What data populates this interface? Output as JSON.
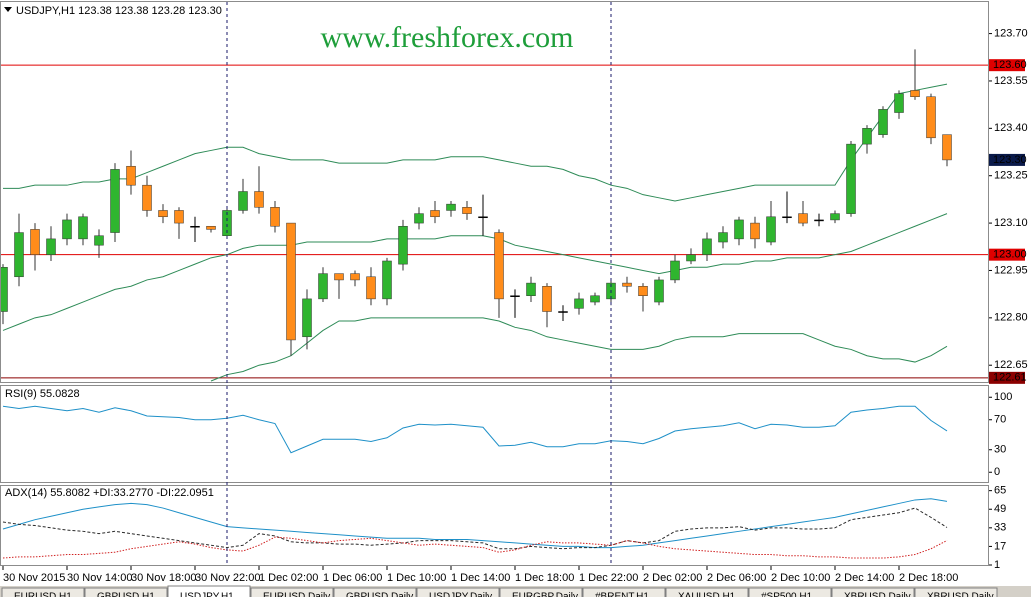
{
  "chart_data": {
    "type": "candlestick",
    "header": "USDJPY,H1  123.38 123.38 123.28 123.30",
    "watermark": "www.freshforex.com",
    "categories": [
      "30 Nov 2015",
      null,
      null,
      null,
      "30 Nov 14:00",
      null,
      null,
      null,
      "30 Nov 18:00",
      null,
      null,
      null,
      "30 Nov 22:00",
      null,
      null,
      null,
      "1 Dec 02:00",
      null,
      null,
      null,
      "1 Dec 06:00",
      null,
      null,
      null,
      "1 Dec 10:00",
      null,
      null,
      null,
      "1 Dec 14:00",
      null,
      null,
      null,
      "1 Dec 18:00",
      null,
      null,
      null,
      "1 Dec 22:00",
      null,
      null,
      null,
      "2 Dec 02:00",
      null,
      null,
      null,
      "2 Dec 06:00",
      null,
      null,
      null,
      "2 Dec 10:00",
      null,
      null,
      null,
      "2 Dec 14:00",
      null,
      null,
      null,
      "2 Dec 18:00",
      null,
      null,
      null
    ],
    "open": [
      122.82,
      122.93,
      123.08,
      123.0,
      123.05,
      123.05,
      123.03,
      123.07,
      123.28,
      123.22,
      123.14,
      123.14,
      123.09,
      123.09,
      123.06,
      123.14,
      123.2,
      123.15,
      123.1,
      122.74,
      122.86,
      122.94,
      122.94,
      122.93,
      122.86,
      122.97,
      123.1,
      123.14,
      123.14,
      123.15,
      123.12,
      123.07,
      122.87,
      122.87,
      122.9,
      122.82,
      122.83,
      122.85,
      122.86,
      122.91,
      122.9,
      122.85,
      122.92,
      122.98,
      123.0,
      123.04,
      123.05,
      123.1,
      123.04,
      123.12,
      123.13,
      123.11,
      123.11,
      123.13,
      123.35,
      123.38,
      123.45,
      123.52,
      123.5,
      123.38
    ],
    "high": [
      122.97,
      123.13,
      123.1,
      123.09,
      123.13,
      123.13,
      123.08,
      123.29,
      123.33,
      123.25,
      123.16,
      123.15,
      123.12,
      123.09,
      123.15,
      123.24,
      123.28,
      123.17,
      123.1,
      122.89,
      122.96,
      122.94,
      122.95,
      122.96,
      122.99,
      123.11,
      123.15,
      123.17,
      123.17,
      123.17,
      123.19,
      123.08,
      122.89,
      122.93,
      122.91,
      122.84,
      122.88,
      122.88,
      122.92,
      122.93,
      122.91,
      122.93,
      123.0,
      123.02,
      123.07,
      123.09,
      123.12,
      123.12,
      123.17,
      123.2,
      123.17,
      123.13,
      123.14,
      123.36,
      123.41,
      123.47,
      123.52,
      123.65,
      123.51,
      123.38
    ],
    "low": [
      122.78,
      122.9,
      122.95,
      122.98,
      123.03,
      123.03,
      122.99,
      123.04,
      123.19,
      123.12,
      123.1,
      123.05,
      123.04,
      123.07,
      123.05,
      123.13,
      123.13,
      123.07,
      122.68,
      122.7,
      122.85,
      122.86,
      122.9,
      122.84,
      122.84,
      122.95,
      123.08,
      123.1,
      123.12,
      123.11,
      123.06,
      122.8,
      122.8,
      122.85,
      122.77,
      122.79,
      122.81,
      122.84,
      122.84,
      122.88,
      122.82,
      122.84,
      122.91,
      122.97,
      122.98,
      123.02,
      123.03,
      123.02,
      123.03,
      123.1,
      123.09,
      123.09,
      123.1,
      123.12,
      123.32,
      123.37,
      123.43,
      123.49,
      123.35,
      123.28
    ],
    "close": [
      122.96,
      123.07,
      123.0,
      123.05,
      123.11,
      123.12,
      123.06,
      123.27,
      123.22,
      123.14,
      123.12,
      123.1,
      123.09,
      123.08,
      123.14,
      123.2,
      123.15,
      123.09,
      122.73,
      122.86,
      122.94,
      122.92,
      122.92,
      122.86,
      122.98,
      123.09,
      123.13,
      123.12,
      123.16,
      123.13,
      123.12,
      122.86,
      122.87,
      122.91,
      122.82,
      122.82,
      122.86,
      122.87,
      122.91,
      122.9,
      122.87,
      122.92,
      122.98,
      123.0,
      123.05,
      123.07,
      123.11,
      123.05,
      123.12,
      123.12,
      123.1,
      123.11,
      123.13,
      123.35,
      123.4,
      123.46,
      123.51,
      123.5,
      123.37,
      123.3
    ],
    "up_color": "#2fb52f",
    "down_color": "#ff8c1a",
    "doji_color": "#000000",
    "ylim": [
      122.6,
      123.8
    ],
    "yticks": [
      {
        "value": 123.7,
        "label": "123.70"
      },
      {
        "value": 123.55,
        "label": "123.55"
      },
      {
        "value": 123.4,
        "label": "123.40"
      },
      {
        "value": 123.25,
        "label": "123.25"
      },
      {
        "value": 123.1,
        "label": "123.10"
      },
      {
        "value": 122.95,
        "label": "122.95"
      },
      {
        "value": 122.8,
        "label": "122.80"
      },
      {
        "value": 122.65,
        "label": "122.65"
      }
    ],
    "hlines": [
      {
        "value": 123.6,
        "label": "123.60",
        "color": "#e00000"
      },
      {
        "value": 123.0,
        "label": "123.00",
        "color": "#e00000"
      },
      {
        "value": 122.61,
        "label": "122.61",
        "color": "#8b0000"
      }
    ],
    "price_label": {
      "value": 123.3,
      "label": "123.30",
      "color": "#0a1a4a"
    },
    "bands": {
      "color": "#2e8b57",
      "upper": [
        123.21,
        123.21,
        123.22,
        123.22,
        123.22,
        123.23,
        123.23,
        123.24,
        123.24,
        123.26,
        123.28,
        123.3,
        123.32,
        123.33,
        123.34,
        123.34,
        123.32,
        123.31,
        123.3,
        123.3,
        123.3,
        123.29,
        123.29,
        123.29,
        123.29,
        123.3,
        123.3,
        123.3,
        123.31,
        123.31,
        123.31,
        123.3,
        123.29,
        123.28,
        123.28,
        123.27,
        123.25,
        123.24,
        123.22,
        123.21,
        123.19,
        123.18,
        123.17,
        123.18,
        123.19,
        123.2,
        123.21,
        123.22,
        123.22,
        123.22,
        123.22,
        123.22,
        123.22,
        123.3,
        123.37,
        123.44,
        123.51,
        123.52,
        123.53,
        123.54
      ],
      "middle": [
        122.76,
        122.78,
        122.8,
        122.81,
        122.83,
        122.85,
        122.87,
        122.89,
        122.9,
        122.92,
        122.93,
        122.95,
        122.97,
        122.99,
        123.0,
        123.02,
        123.03,
        123.03,
        123.03,
        123.04,
        123.04,
        123.04,
        123.04,
        123.04,
        123.05,
        123.05,
        123.05,
        123.05,
        123.06,
        123.06,
        123.06,
        123.05,
        123.03,
        123.02,
        123.01,
        123.0,
        122.99,
        122.98,
        122.97,
        122.96,
        122.95,
        122.94,
        122.95,
        122.96,
        122.96,
        122.97,
        122.97,
        122.98,
        122.98,
        122.99,
        122.99,
        122.99,
        123.0,
        123.01,
        123.03,
        123.05,
        123.07,
        123.09,
        123.11,
        123.13
      ],
      "lower": [
        null,
        null,
        null,
        null,
        null,
        null,
        null,
        null,
        null,
        null,
        null,
        null,
        null,
        122.6,
        122.62,
        122.63,
        122.65,
        122.66,
        122.68,
        122.72,
        122.76,
        122.79,
        122.79,
        122.8,
        122.8,
        122.8,
        122.8,
        122.8,
        122.8,
        122.8,
        122.8,
        122.79,
        122.77,
        122.76,
        122.74,
        122.73,
        122.72,
        122.71,
        122.7,
        122.7,
        122.7,
        122.71,
        122.73,
        122.74,
        122.74,
        122.74,
        122.75,
        122.75,
        122.75,
        122.75,
        122.75,
        122.73,
        122.71,
        122.7,
        122.68,
        122.67,
        122.67,
        122.66,
        122.68,
        122.71
      ]
    },
    "rsi": {
      "label": "RSI(9) 55.0828",
      "color": "#1e90c8",
      "values": [
        88,
        85,
        88,
        85,
        82,
        85,
        80,
        86,
        82,
        75,
        74,
        73,
        70,
        70,
        72,
        76,
        70,
        65,
        26,
        35,
        44,
        44,
        44,
        41,
        46,
        59,
        64,
        63,
        64,
        62,
        60,
        35,
        36,
        40,
        34,
        34,
        38,
        38,
        42,
        41,
        38,
        45,
        55,
        58,
        60,
        62,
        66,
        58,
        64,
        63,
        60,
        60,
        62,
        80,
        83,
        85,
        88,
        88,
        69,
        55.0828
      ],
      "ylim": [
        -13,
        115
      ],
      "yticks": [
        100,
        70,
        30,
        0
      ]
    },
    "adx": {
      "label": "ADX(14) 55.8082 +DI:33.2770 -DI:22.0951",
      "adx_color": "#1e90c8",
      "plus_color": "#2a2a2a",
      "minus_color": "#d02020",
      "adx_values": [
        32,
        36,
        40,
        43,
        46,
        49,
        51,
        53,
        54,
        53,
        50,
        46,
        42,
        38,
        34,
        33,
        32,
        31,
        30,
        29,
        28,
        27,
        26,
        25,
        24,
        24,
        24,
        23,
        23,
        23,
        22,
        21,
        20,
        19,
        18,
        17,
        17,
        16,
        16,
        17,
        18,
        20,
        22,
        24,
        26,
        28,
        30,
        32,
        34,
        36,
        38,
        40,
        42,
        45,
        48,
        51,
        54,
        57,
        58,
        55.8082
      ],
      "plus_di": [
        38,
        36,
        35,
        33,
        31,
        30,
        28,
        30,
        28,
        26,
        24,
        22,
        20,
        18,
        16,
        18,
        28,
        26,
        21,
        20,
        20,
        19,
        19,
        18,
        19,
        20,
        22,
        22,
        22,
        21,
        20,
        15,
        15,
        17,
        16,
        15,
        16,
        16,
        18,
        22,
        20,
        22,
        30,
        32,
        33,
        33,
        34,
        31,
        33,
        33,
        32,
        32,
        33,
        40,
        42,
        44,
        46,
        50,
        42,
        33.277
      ],
      "minus_di": [
        7,
        8,
        8,
        9,
        10,
        10,
        11,
        12,
        15,
        17,
        19,
        21,
        19,
        16,
        14,
        13,
        18,
        25,
        24,
        22,
        20,
        22,
        23,
        24,
        22,
        20,
        18,
        19,
        18,
        17,
        16,
        12,
        14,
        18,
        21,
        20,
        20,
        19,
        18,
        22,
        20,
        17,
        15,
        14,
        13,
        12,
        11,
        10,
        10,
        9,
        9,
        8,
        8,
        7,
        7,
        7,
        8,
        10,
        15,
        22.0951
      ],
      "ylim": [
        1,
        69
      ],
      "yticks": [
        65,
        49,
        33,
        17,
        1
      ]
    },
    "tabs": [
      "EURUSD,H1",
      "GBPUSD,H1",
      "USDJPY,H1",
      "EURUSD,Daily",
      "GBPUSD,Daily",
      "USDJPY,Daily",
      "EURGBP,Daily",
      "#BRENT,H1",
      "XAUUSD,H1",
      "#SP500,H1",
      "XBRUSD,Daily",
      "XBRUSD,Daily"
    ],
    "active_tab": 2
  }
}
